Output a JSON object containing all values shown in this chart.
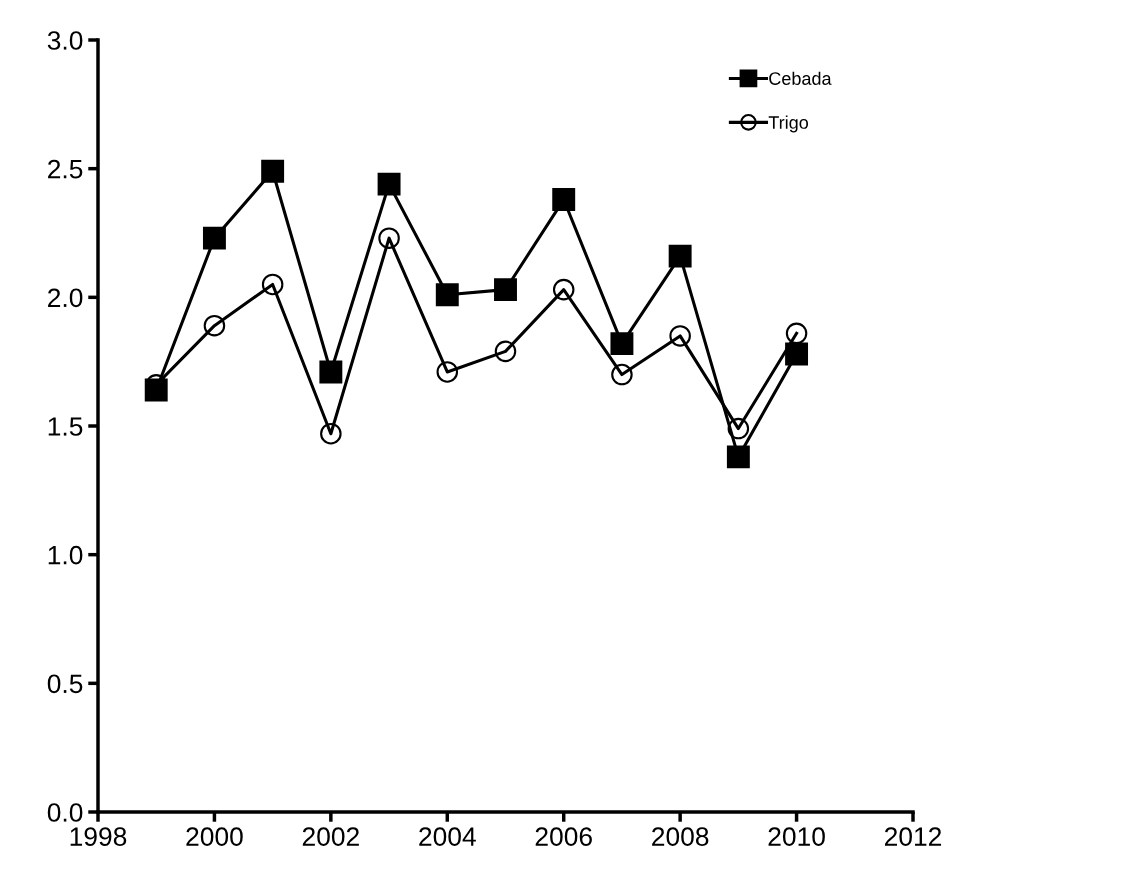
{
  "chart_data": {
    "type": "line",
    "x": [
      1999,
      2000,
      2001,
      2002,
      2003,
      2004,
      2005,
      2006,
      2007,
      2008,
      2009,
      2010
    ],
    "series": [
      {
        "name": "Cebada",
        "color": "#000000",
        "marker": "square",
        "values": [
          1.64,
          2.23,
          2.49,
          1.71,
          2.44,
          2.01,
          2.03,
          2.38,
          1.82,
          2.16,
          1.38,
          1.78
        ]
      },
      {
        "name": "Trigo",
        "color": "#000000",
        "marker": "circle",
        "values": [
          1.66,
          1.89,
          2.05,
          1.47,
          2.23,
          1.71,
          1.79,
          2.03,
          1.7,
          1.85,
          1.49,
          1.86
        ]
      }
    ],
    "xlim": [
      1998,
      2012
    ],
    "xticks": [
      1998,
      2000,
      2002,
      2004,
      2006,
      2008,
      2010,
      2012
    ],
    "ylim": [
      0.0,
      3.0
    ],
    "yticks": [
      {
        "value": 0,
        "label": "0.0"
      },
      {
        "value": 0.5,
        "label": "0.5"
      },
      {
        "value": 1,
        "label": "1.0"
      },
      {
        "value": 1.5,
        "label": "1.5"
      },
      {
        "value": 2,
        "label": "2.0"
      },
      {
        "value": 2.5,
        "label": "2.5"
      },
      {
        "value": 3,
        "label": "3.0"
      }
    ],
    "grid": false,
    "legend": "top right",
    "line_style": "solid"
  }
}
